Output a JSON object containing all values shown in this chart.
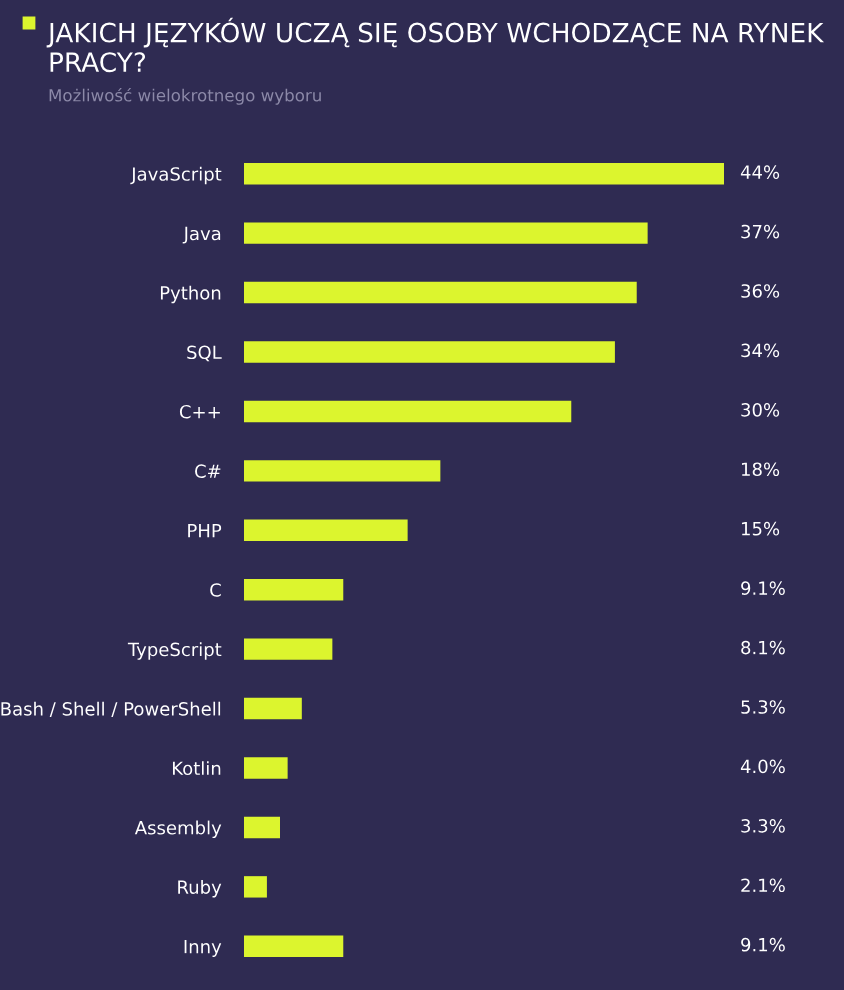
{
  "chart_data": {
    "type": "bar",
    "orientation": "horizontal",
    "title": "JAKICH JĘZYKÓW UCZĄ SIĘ OSOBY WCHODZĄCE NA RYNEK PRACY?",
    "subtitle": "Możliwość wielokrotnego wyboru",
    "categories": [
      "JavaScript",
      "Java",
      "Python",
      "SQL",
      "C++",
      "C#",
      "PHP",
      "C",
      "TypeScript",
      "Bash / Shell / PowerShell",
      "Kotlin",
      "Assembly",
      "Ruby",
      "Inny"
    ],
    "values": [
      44,
      37,
      36,
      34,
      30,
      18,
      15,
      9.1,
      8.1,
      5.3,
      4.0,
      3.3,
      2.1,
      9.1
    ],
    "value_labels": [
      "44%",
      "37%",
      "36%",
      "34%",
      "30%",
      "18%",
      "15%",
      "9.1%",
      "8.1%",
      "5.3%",
      "4.0%",
      "3.3%",
      "2.1%",
      "9.1%"
    ],
    "color": "#dcf52e",
    "grid": false,
    "legend": false
  }
}
